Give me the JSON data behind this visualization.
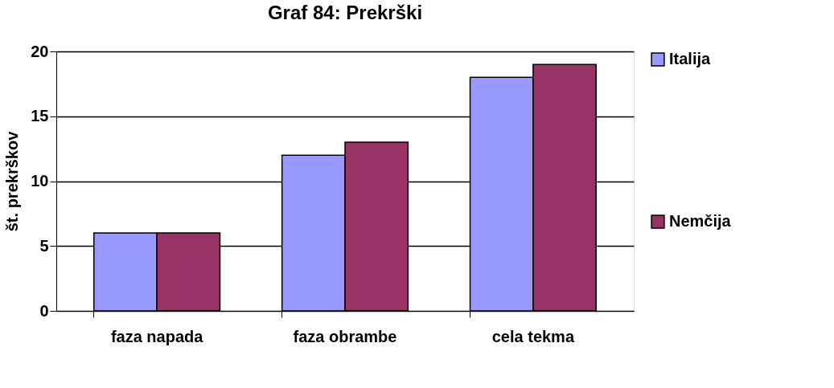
{
  "chart_data": {
    "type": "bar",
    "title": "Graf 84: Prekrški",
    "ylabel": "št. prekrškov",
    "categories": [
      "faza napada",
      "faza obrambe",
      "cela tekma"
    ],
    "series": [
      {
        "name": "Italija",
        "color": "#9999ff",
        "values": [
          6,
          12,
          18
        ]
      },
      {
        "name": "Nemčija",
        "color": "#993366",
        "values": [
          6,
          13,
          19
        ]
      }
    ],
    "ylim": [
      0,
      20
    ],
    "yticks": [
      0,
      5,
      10,
      15,
      20
    ],
    "grid": "y",
    "legend": "right"
  }
}
